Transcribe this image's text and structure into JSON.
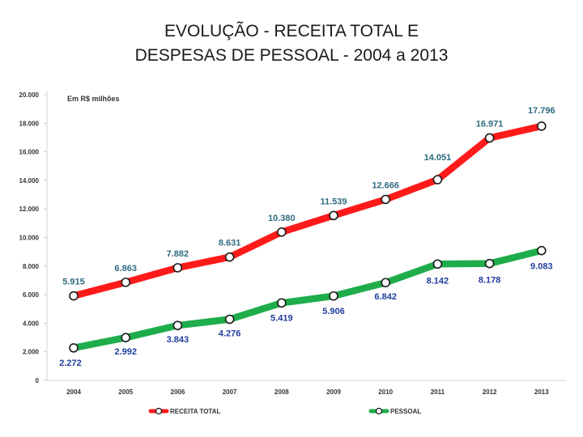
{
  "slide": {
    "title_line1": "EVOLUÇÃO - RECEITA TOTAL E",
    "title_line2": "DESPESAS DE PESSOAL - 2004 a 2013"
  },
  "chart_data": {
    "type": "line",
    "annotation": "Em R$ milhões",
    "categories": [
      "2004",
      "2005",
      "2006",
      "2007",
      "2008",
      "2009",
      "2010",
      "2011",
      "2012",
      "2013"
    ],
    "y_ticks": [
      "0",
      "2.000",
      "4.000",
      "6.000",
      "8.000",
      "10.000",
      "12.000",
      "14.000",
      "16.000",
      "18.000",
      "20.000"
    ],
    "ylim": [
      0,
      20000
    ],
    "grid": false,
    "legend_position": "bottom",
    "series": [
      {
        "name": "RECEITA TOTAL",
        "color": "#ff1a1a",
        "label_color": "#2e6b80",
        "values": [
          5915,
          6863,
          7882,
          8631,
          10380,
          11539,
          12666,
          14051,
          16971,
          17796
        ],
        "labels": [
          "5.915",
          "6.863",
          "7.882",
          "8.631",
          "10.380",
          "11.539",
          "12.666",
          "14.051",
          "16.971",
          "17.796"
        ]
      },
      {
        "name": "PESSOAL",
        "color": "#1fad4b",
        "label_color": "#1f3d9e",
        "values": [
          2272,
          2992,
          3843,
          4276,
          5419,
          5906,
          6842,
          8142,
          8178,
          9083
        ],
        "labels": [
          "2.272",
          "2.992",
          "3.843",
          "4.276",
          "5.419",
          "5.906",
          "6.842",
          "8.142",
          "8.178",
          "9.083"
        ]
      }
    ]
  }
}
